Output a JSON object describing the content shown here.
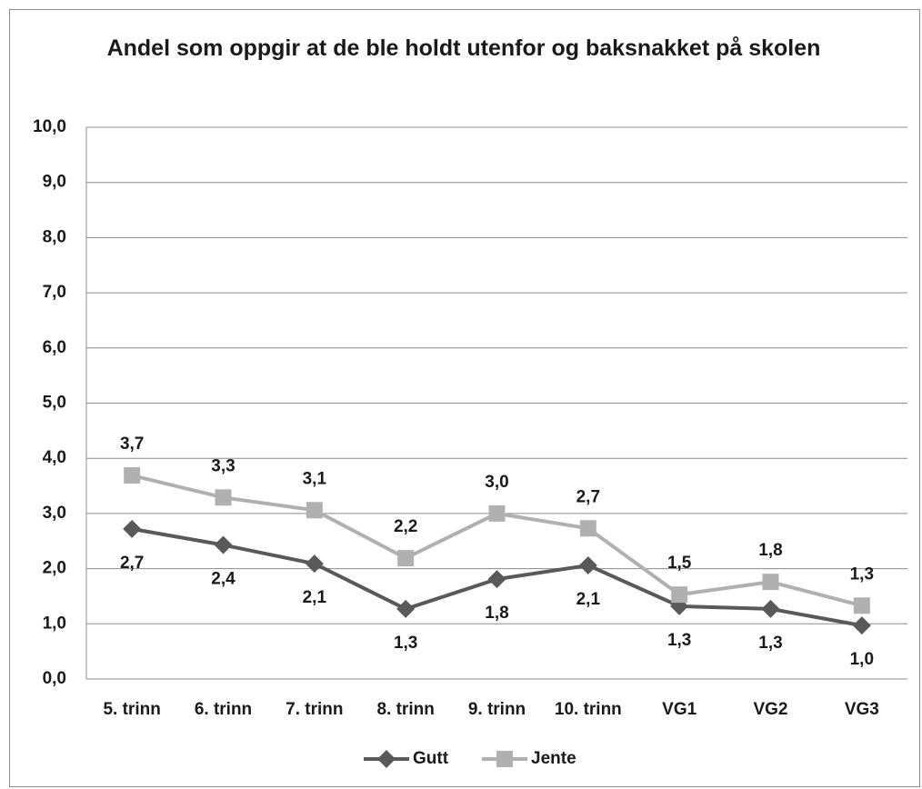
{
  "chart_data": {
    "type": "line",
    "title": "Andel som oppgir at de ble holdt utenfor og baksnakket på skolen",
    "categories": [
      "5. trinn",
      "6. trinn",
      "7. trinn",
      "8. trinn",
      "9. trinn",
      "10. trinn",
      "VG1",
      "VG2",
      "VG3"
    ],
    "series": [
      {
        "name": "Gutt",
        "color": "#595959",
        "marker": "diamond",
        "values": [
          2.72,
          2.43,
          2.09,
          1.27,
          1.81,
          2.06,
          1.32,
          1.27,
          0.97
        ],
        "value_labels": [
          "2,7",
          "2,4",
          "2,1",
          "1,3",
          "1,8",
          "2,1",
          "1,3",
          "1,3",
          "1,0"
        ]
      },
      {
        "name": "Jente",
        "color": "#b0b0b0",
        "marker": "square",
        "values": [
          3.69,
          3.29,
          3.06,
          2.19,
          3.0,
          2.73,
          1.53,
          1.76,
          1.33
        ],
        "value_labels": [
          "3,7",
          "3,3",
          "3,1",
          "2,2",
          "3,0",
          "2,7",
          "1,5",
          "1,8",
          "1,3"
        ]
      }
    ],
    "ylim": [
      0,
      10
    ],
    "yticks": [
      {
        "value": 0,
        "label": "0,0"
      },
      {
        "value": 1,
        "label": "1,0"
      },
      {
        "value": 2,
        "label": "2,0"
      },
      {
        "value": 3,
        "label": "3,0"
      },
      {
        "value": 4,
        "label": "4,0"
      },
      {
        "value": 5,
        "label": "5,0"
      },
      {
        "value": 6,
        "label": "6,0"
      },
      {
        "value": 7,
        "label": "7,0"
      },
      {
        "value": 8,
        "label": "8,0"
      },
      {
        "value": 9,
        "label": "9,0"
      },
      {
        "value": 10,
        "label": "10,0"
      }
    ],
    "grid": true,
    "legend": "bottom"
  }
}
